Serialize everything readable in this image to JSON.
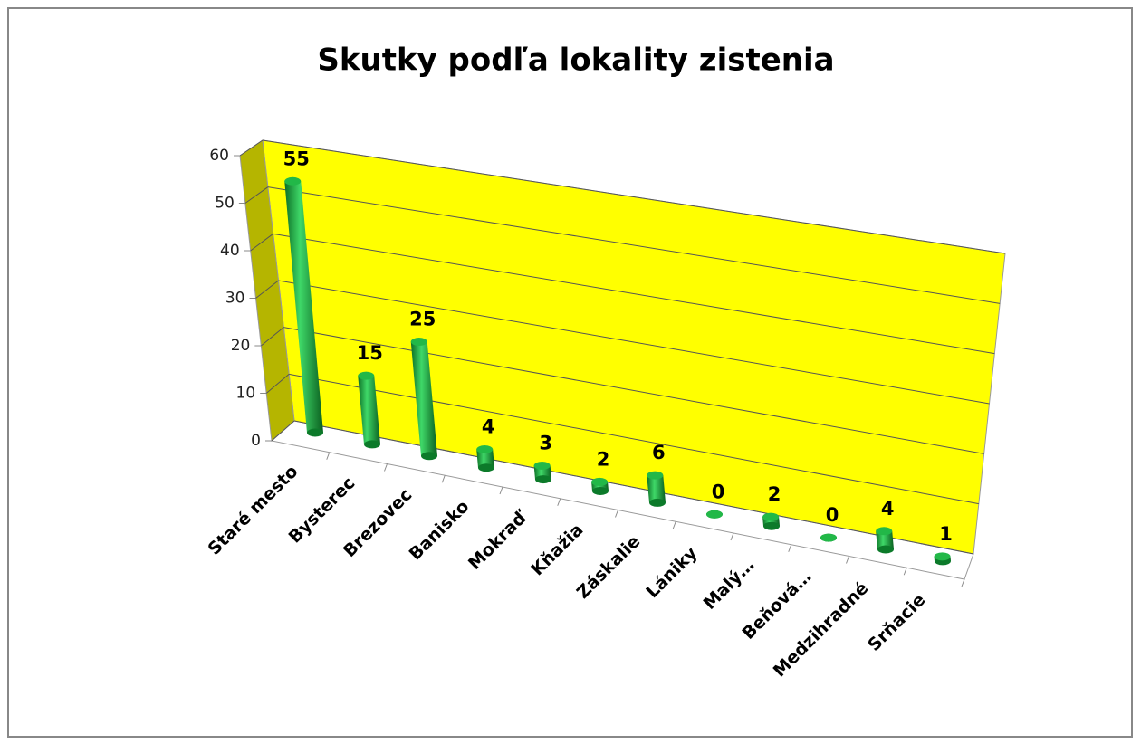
{
  "chart_data": {
    "type": "bar3d",
    "title": "Skutky podľa lokality zistenia",
    "categories": [
      "Staré mesto",
      "Bysterec",
      "Brezovec",
      "Banisko",
      "Mokraď",
      "Kňažia",
      "Záskalie",
      "Lániky",
      "Malý…",
      "Beňová…",
      "Medzihradné",
      "Srňacie"
    ],
    "values": [
      55,
      15,
      25,
      4,
      3,
      2,
      6,
      0,
      2,
      0,
      4,
      1
    ],
    "color": "#1aa83c",
    "wall_color": "#ffff00",
    "side_wall_color": "#b5b500",
    "ylim": [
      0,
      60
    ],
    "yticks": [
      0,
      10,
      20,
      30,
      40,
      50,
      60
    ],
    "grid": true
  }
}
